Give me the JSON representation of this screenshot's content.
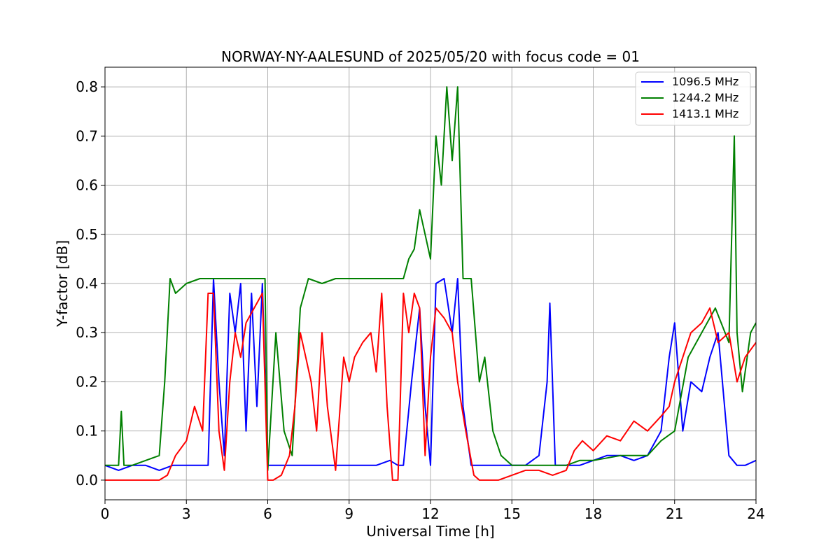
{
  "chart_data": {
    "type": "line",
    "title": "NORWAY-NY-AALESUND of 2025/05/20 with focus code = 01",
    "xlabel": "Universal Time [h]",
    "ylabel": "Y-factor [dB]",
    "xlim": [
      0,
      24
    ],
    "ylim": [
      -0.04,
      0.84
    ],
    "xticks": [
      0,
      3,
      6,
      9,
      12,
      15,
      18,
      21,
      24
    ],
    "xtick_labels": [
      "0",
      "3",
      "6",
      "9",
      "12",
      "15",
      "18",
      "21",
      "24"
    ],
    "yticks": [
      0.0,
      0.1,
      0.2,
      0.3,
      0.4,
      0.5,
      0.6,
      0.7,
      0.8
    ],
    "ytick_labels": [
      "0.0",
      "0.1",
      "0.2",
      "0.3",
      "0.4",
      "0.5",
      "0.6",
      "0.7",
      "0.8"
    ],
    "grid": true,
    "legend_position": "top-right",
    "series": [
      {
        "name": "1096.5 MHz",
        "color": "#0000ff",
        "x": [
          0,
          0.5,
          1.0,
          1.5,
          2.0,
          2.5,
          3.0,
          3.5,
          3.8,
          4.0,
          4.2,
          4.4,
          4.6,
          4.8,
          5.0,
          5.2,
          5.4,
          5.6,
          5.8,
          6.0,
          6.5,
          7.0,
          8.0,
          9.0,
          10.0,
          10.5,
          10.8,
          11.0,
          11.3,
          11.6,
          11.8,
          12.0,
          12.2,
          12.5,
          12.8,
          13.0,
          13.2,
          13.5,
          13.8,
          14.0,
          14.5,
          15.0,
          15.5,
          16.0,
          16.3,
          16.4,
          16.6,
          17.0,
          17.5,
          18.0,
          18.5,
          19.0,
          19.5,
          20.0,
          20.5,
          20.8,
          21.0,
          21.3,
          21.6,
          22.0,
          22.3,
          22.6,
          23.0,
          23.3,
          23.6,
          24.0
        ],
        "y": [
          0.03,
          0.02,
          0.03,
          0.03,
          0.02,
          0.03,
          0.03,
          0.03,
          0.03,
          0.41,
          0.2,
          0.05,
          0.38,
          0.3,
          0.4,
          0.1,
          0.38,
          0.15,
          0.4,
          0.03,
          0.03,
          0.03,
          0.03,
          0.03,
          0.03,
          0.04,
          0.03,
          0.03,
          0.2,
          0.35,
          0.15,
          0.03,
          0.4,
          0.41,
          0.3,
          0.41,
          0.15,
          0.03,
          0.03,
          0.03,
          0.03,
          0.03,
          0.03,
          0.05,
          0.2,
          0.36,
          0.03,
          0.03,
          0.03,
          0.04,
          0.05,
          0.05,
          0.04,
          0.05,
          0.1,
          0.25,
          0.32,
          0.1,
          0.2,
          0.18,
          0.25,
          0.3,
          0.05,
          0.03,
          0.03,
          0.04
        ]
      },
      {
        "name": "1244.2 MHz",
        "color": "#008000",
        "x": [
          0,
          0.5,
          0.6,
          0.7,
          1.0,
          1.5,
          2.0,
          2.2,
          2.4,
          2.6,
          3.0,
          3.5,
          4.0,
          4.5,
          5.0,
          5.5,
          5.9,
          6.0,
          6.3,
          6.6,
          6.9,
          7.2,
          7.5,
          8.0,
          8.5,
          9.0,
          9.5,
          10.0,
          10.5,
          11.0,
          11.2,
          11.4,
          11.6,
          11.8,
          12.0,
          12.2,
          12.4,
          12.6,
          12.8,
          13.0,
          13.2,
          13.5,
          13.8,
          14.0,
          14.3,
          14.6,
          15.0,
          15.5,
          16.0,
          17.0,
          17.5,
          18.0,
          19.0,
          20.0,
          20.5,
          21.0,
          21.5,
          22.0,
          22.5,
          23.0,
          23.2,
          23.3,
          23.5,
          23.8,
          24.0
        ],
        "y": [
          0.03,
          0.03,
          0.14,
          0.03,
          0.03,
          0.04,
          0.05,
          0.2,
          0.41,
          0.38,
          0.4,
          0.41,
          0.41,
          0.41,
          0.41,
          0.41,
          0.41,
          0.02,
          0.3,
          0.1,
          0.05,
          0.35,
          0.41,
          0.4,
          0.41,
          0.41,
          0.41,
          0.41,
          0.41,
          0.41,
          0.45,
          0.47,
          0.55,
          0.5,
          0.45,
          0.7,
          0.6,
          0.8,
          0.65,
          0.8,
          0.41,
          0.41,
          0.2,
          0.25,
          0.1,
          0.05,
          0.03,
          0.03,
          0.03,
          0.03,
          0.04,
          0.04,
          0.05,
          0.05,
          0.08,
          0.1,
          0.25,
          0.3,
          0.35,
          0.28,
          0.7,
          0.3,
          0.18,
          0.3,
          0.32
        ]
      },
      {
        "name": "1413.1 MHz",
        "color": "#ff0000",
        "x": [
          0,
          1.0,
          2.0,
          2.3,
          2.6,
          3.0,
          3.3,
          3.6,
          3.8,
          4.0,
          4.2,
          4.4,
          4.6,
          4.8,
          5.0,
          5.2,
          5.5,
          5.8,
          6.0,
          6.2,
          6.5,
          6.8,
          7.0,
          7.2,
          7.4,
          7.6,
          7.8,
          8.0,
          8.2,
          8.5,
          8.8,
          9.0,
          9.2,
          9.5,
          9.8,
          10.0,
          10.2,
          10.4,
          10.6,
          10.8,
          11.0,
          11.2,
          11.4,
          11.6,
          11.8,
          12.0,
          12.2,
          12.5,
          12.8,
          13.0,
          13.3,
          13.6,
          13.8,
          14.0,
          14.5,
          15.0,
          15.5,
          16.0,
          16.5,
          17.0,
          17.3,
          17.6,
          18.0,
          18.5,
          19.0,
          19.5,
          20.0,
          20.5,
          20.8,
          21.0,
          21.3,
          21.6,
          22.0,
          22.3,
          22.6,
          23.0,
          23.3,
          23.6,
          24.0
        ],
        "y": [
          0.0,
          0.0,
          0.0,
          0.01,
          0.05,
          0.08,
          0.15,
          0.1,
          0.38,
          0.38,
          0.1,
          0.02,
          0.2,
          0.3,
          0.25,
          0.32,
          0.35,
          0.38,
          0.0,
          0.0,
          0.01,
          0.05,
          0.15,
          0.3,
          0.25,
          0.2,
          0.1,
          0.3,
          0.15,
          0.02,
          0.25,
          0.2,
          0.25,
          0.28,
          0.3,
          0.22,
          0.38,
          0.15,
          0.0,
          0.0,
          0.38,
          0.3,
          0.38,
          0.35,
          0.05,
          0.25,
          0.35,
          0.33,
          0.3,
          0.2,
          0.1,
          0.01,
          0.0,
          0.0,
          0.0,
          0.01,
          0.02,
          0.02,
          0.01,
          0.02,
          0.06,
          0.08,
          0.06,
          0.09,
          0.08,
          0.12,
          0.1,
          0.13,
          0.15,
          0.2,
          0.25,
          0.3,
          0.32,
          0.35,
          0.28,
          0.3,
          0.2,
          0.25,
          0.28
        ]
      }
    ]
  }
}
